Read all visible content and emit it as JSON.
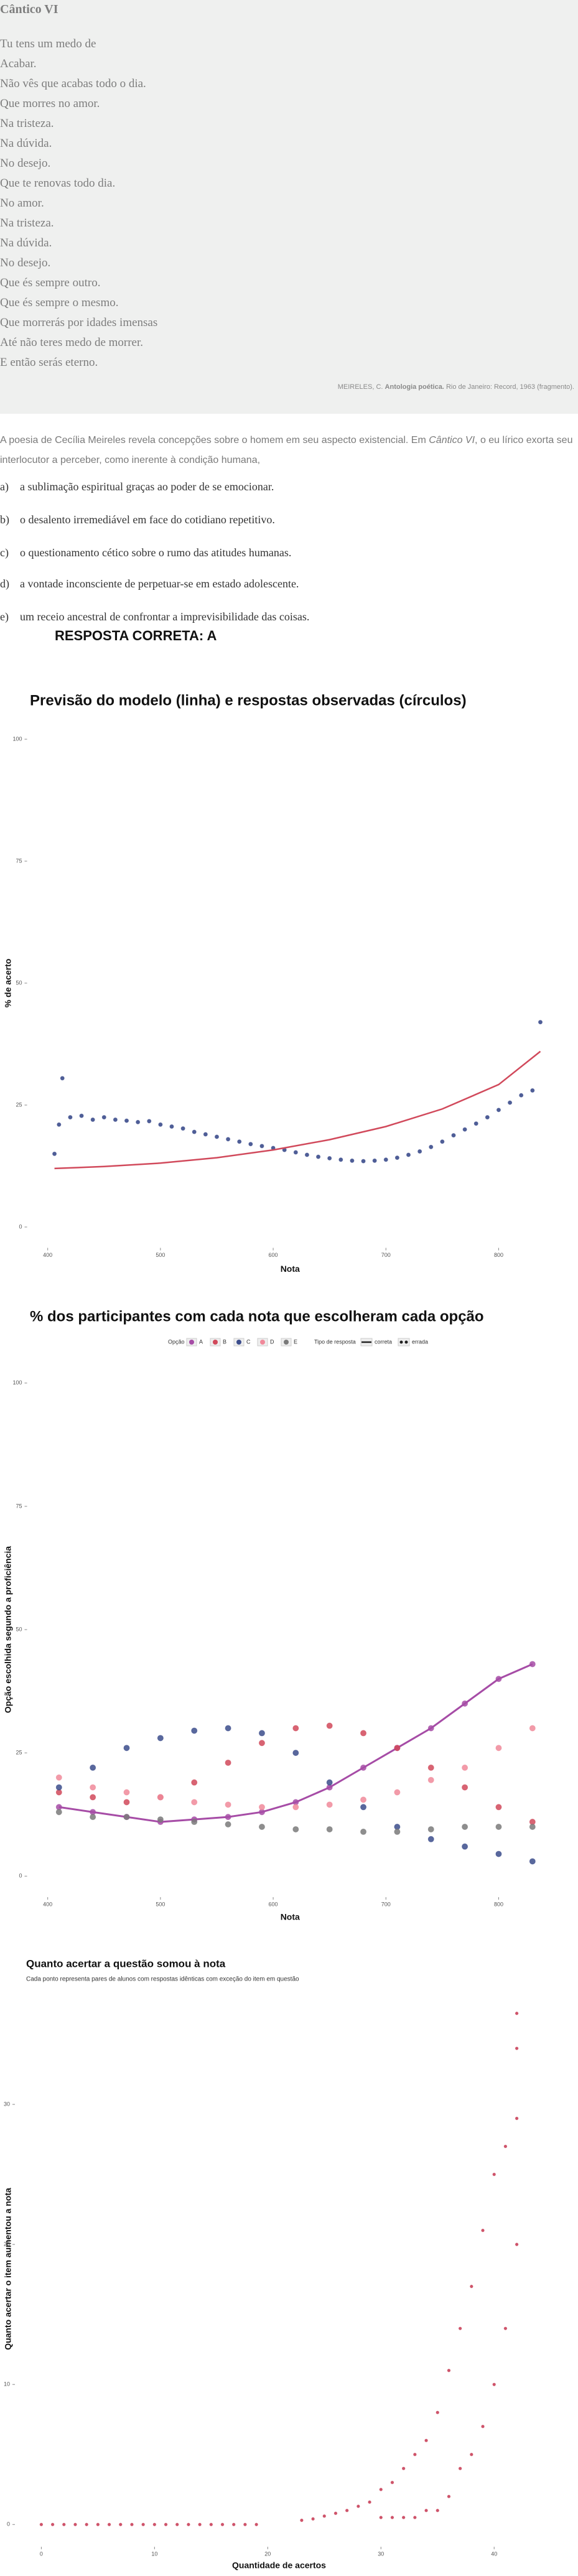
{
  "poem": {
    "title": "Cântico VI",
    "lines": [
      "Tu tens um medo de",
      "Acabar.",
      "Não vês que acabas todo o dia.",
      "Que morres no amor.",
      "Na tristeza.",
      "Na dúvida.",
      "No desejo.",
      "Que te renovas todo dia.",
      "No amor.",
      "Na tristeza.",
      "Na dúvida.",
      "No desejo.",
      "Que és sempre outro.",
      "Que és sempre o mesmo.",
      "Que morrerás por idades imensas",
      "Até não teres medo de morrer.",
      "E então serás eterno."
    ],
    "citation": {
      "author": "MEIRELES, C.",
      "work": "Antologia poética.",
      "rest": "Rio de Janeiro: Record, 1963 (fragmento)."
    }
  },
  "question": {
    "intro": {
      "before": "A poesia de Cecília Meireles revela concepções sobre o homem em seu aspecto existencial. Em ",
      "work": "Cântico VI",
      "after": ", o eu lírico exorta seu interlocutor a perceber, como inerente à condição humana,"
    },
    "options": [
      {
        "letter": "a)",
        "text": "a sublimação espiritual graças ao poder de se emocionar."
      },
      {
        "letter": "b)",
        "text": "o desalento irremediável em face do cotidiano repetitivo."
      },
      {
        "letter": "c)",
        "text": "o questionamento cético sobre o rumo das atitudes humanas."
      },
      {
        "letter": "d)",
        "text": "a vontade inconsciente de perpetuar-se em estado adolescente."
      },
      {
        "letter": "e)",
        "text": "um receio ancestral de confrontar a imprevisibilidade das coisas."
      }
    ],
    "answer": "RESPOSTA CORRETA: A"
  },
  "chart_data": [
    {
      "type": "scatter",
      "title": "Previsão do modelo (linha) e respostas observadas (círculos)",
      "x_label": "Nota",
      "y_label": "% de acerto",
      "xlim": [
        385,
        845
      ],
      "ylim": [
        -3,
        103
      ],
      "xticks": [
        400,
        500,
        600,
        700,
        800
      ],
      "yticks": [
        0,
        25,
        50,
        75,
        100
      ],
      "grid": false,
      "series": [
        {
          "mode": "points",
          "color": "#3c4d8c",
          "x": [
            406,
            410,
            413,
            420,
            430,
            440,
            450,
            460,
            470,
            480,
            490,
            500,
            510,
            520,
            530,
            540,
            550,
            560,
            570,
            580,
            590,
            600,
            610,
            620,
            630,
            640,
            650,
            660,
            670,
            680,
            690,
            700,
            710,
            720,
            730,
            740,
            750,
            760,
            770,
            780,
            790,
            800,
            810,
            820,
            830,
            837
          ],
          "values": [
            15,
            21,
            30.5,
            22.5,
            22.8,
            22,
            22.5,
            22,
            21.8,
            21.5,
            21.7,
            21,
            20.6,
            20.2,
            19.5,
            19,
            18.5,
            18,
            17.5,
            17,
            16.6,
            16.2,
            15.8,
            15.3,
            14.8,
            14.4,
            14.1,
            13.8,
            13.6,
            13.5,
            13.6,
            13.8,
            14.2,
            14.8,
            15.5,
            16.4,
            17.5,
            18.8,
            20,
            21.2,
            22.5,
            24,
            25.5,
            27,
            28,
            42
          ]
        },
        {
          "mode": "line",
          "color": "#d1495b",
          "x": [
            406,
            450,
            500,
            550,
            600,
            650,
            700,
            750,
            800,
            837
          ],
          "values": [
            12,
            12.4,
            13.1,
            14.2,
            15.8,
            17.9,
            20.6,
            24.2,
            29.2,
            36
          ]
        }
      ]
    },
    {
      "type": "scatter",
      "title": "% dos participantes com cada nota que escolheram cada opção",
      "x_label": "Nota",
      "y_label": "Opção escolhida segundo a proficiência",
      "legend_title": "Opção",
      "style_legend": {
        "title": "Tipo de resposta",
        "entries": [
          "correta",
          "errada"
        ]
      },
      "xlim": [
        385,
        845
      ],
      "ylim": [
        -3,
        103
      ],
      "xticks": [
        400,
        500,
        600,
        700,
        800
      ],
      "yticks": [
        0,
        25,
        50,
        75,
        100
      ],
      "grid": false,
      "x": [
        410,
        440,
        470,
        500,
        530,
        560,
        590,
        620,
        650,
        680,
        710,
        740,
        770,
        800,
        830
      ],
      "series": [
        {
          "name": "A",
          "mode": "both",
          "color": "#a64ca6",
          "values": [
            14,
            13,
            12,
            11,
            11.5,
            12,
            13,
            15,
            18,
            22,
            26,
            30,
            35,
            40,
            43
          ]
        },
        {
          "name": "B",
          "mode": "points",
          "color": "#d1495b",
          "values": [
            17,
            16,
            15,
            16,
            19,
            23,
            27,
            30,
            30.5,
            29,
            26,
            22,
            18,
            14,
            11
          ]
        },
        {
          "name": "C",
          "mode": "points",
          "color": "#3c4d8c",
          "values": [
            18,
            22,
            26,
            28,
            29.5,
            30,
            29,
            25,
            19,
            14,
            10,
            7.5,
            6,
            4.5,
            3
          ]
        },
        {
          "name": "D",
          "mode": "points",
          "color": "#f0899a",
          "values": [
            20,
            18,
            17,
            16,
            15,
            14.5,
            14,
            14,
            14.5,
            15.5,
            17,
            19.5,
            22,
            26,
            30
          ]
        },
        {
          "name": "E",
          "mode": "points",
          "color": "#7a7a7a",
          "values": [
            13,
            12,
            12,
            11.5,
            11,
            10.5,
            10,
            9.5,
            9.5,
            9,
            9,
            9.5,
            10,
            10,
            10
          ]
        }
      ]
    },
    {
      "type": "scatter",
      "title": "Quanto acertar a questão somou à nota",
      "subtitle": "Cada ponto representa pares de alunos com respostas idênticas com exceção do item em questão",
      "x_label": "Quantidade de acertos",
      "y_label": "Quanto acertar o item aumentou a nota",
      "xlim": [
        -2,
        44
      ],
      "ylim": [
        -1.5,
        38
      ],
      "xticks": [
        0,
        10,
        20,
        30,
        40
      ],
      "yticks": [
        0,
        10,
        20,
        30
      ],
      "grid": false,
      "series": [
        {
          "mode": "points",
          "color": "#c9415a",
          "x": [
            0,
            1,
            2,
            3,
            4,
            5,
            6,
            7,
            8,
            9,
            10,
            11,
            12,
            13,
            14,
            15,
            16,
            17,
            18,
            19,
            23,
            24,
            25,
            26,
            27,
            28,
            29,
            30,
            30,
            31,
            31,
            32,
            32,
            33,
            33,
            34,
            34,
            35,
            35,
            36,
            36,
            37,
            37,
            38,
            38,
            39,
            39,
            40,
            40,
            41,
            41,
            42,
            42,
            42,
            42
          ],
          "values": [
            0,
            0,
            0,
            0,
            0,
            0,
            0,
            0,
            0,
            0,
            0,
            0,
            0,
            0,
            0,
            0,
            0,
            0,
            0,
            0,
            0.3,
            0.4,
            0.6,
            0.8,
            1,
            1.3,
            1.6,
            0.5,
            2.5,
            0.5,
            3,
            0.5,
            4,
            0.5,
            5,
            1,
            6,
            1,
            8,
            2,
            11,
            4,
            14,
            5,
            17,
            7,
            21,
            10,
            25,
            14,
            27,
            20,
            29,
            34,
            36.5
          ]
        }
      ]
    }
  ]
}
